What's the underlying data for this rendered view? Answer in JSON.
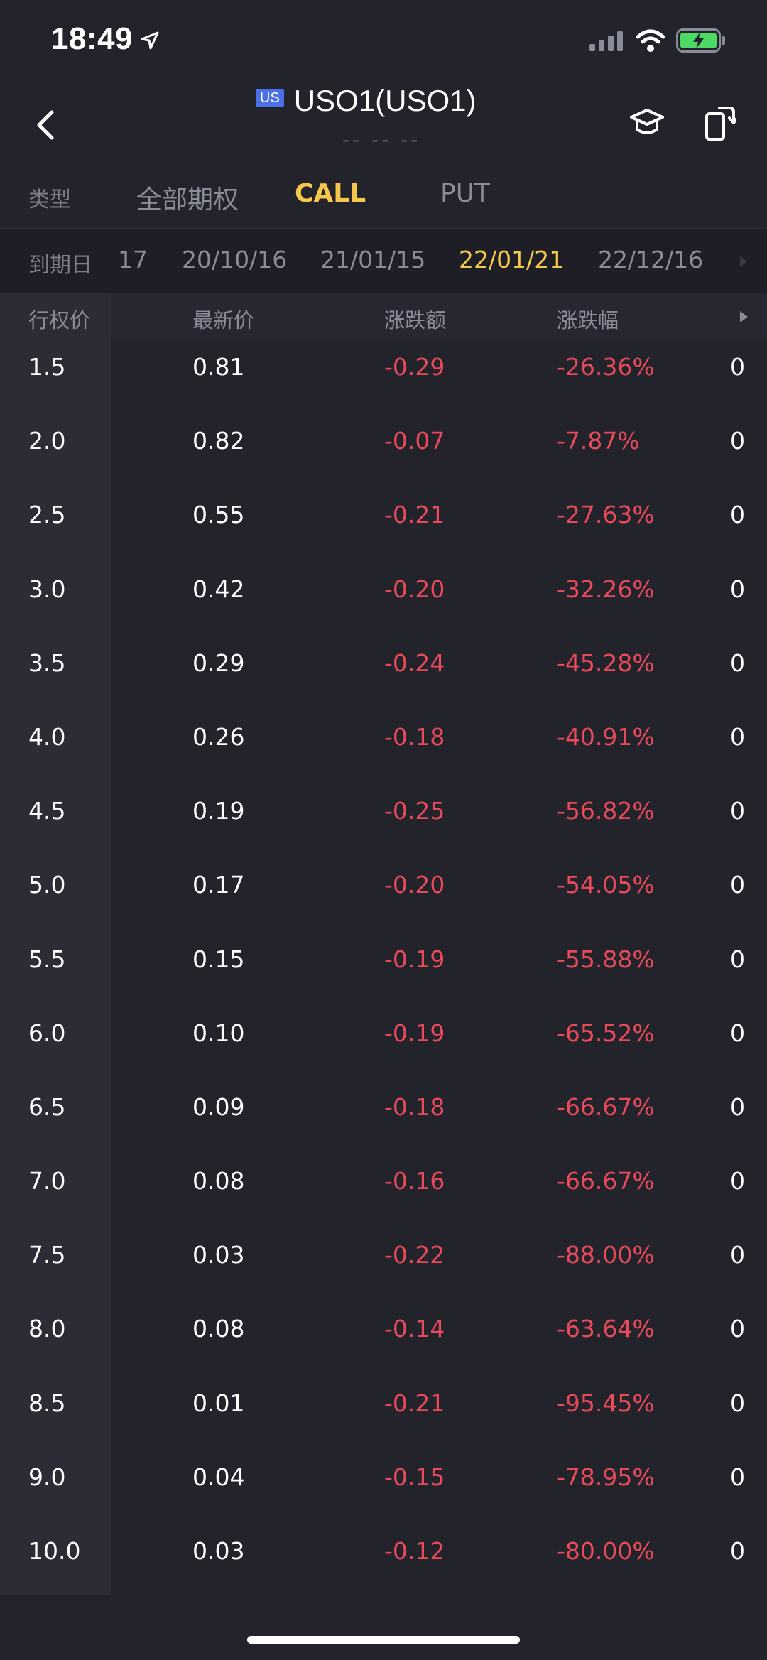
{
  "status_bar": {
    "time": "18:49"
  },
  "header": {
    "market_badge": "US",
    "title": "USO1(USO1)",
    "subtitle": "-- -- --"
  },
  "type_filter": {
    "label": "类型",
    "tabs": [
      {
        "label": "全部期权",
        "active": false
      },
      {
        "label": "CALL",
        "active": true
      },
      {
        "label": "PUT",
        "active": false
      }
    ]
  },
  "expiry": {
    "label": "到期日",
    "dates": [
      {
        "label": "17",
        "active": false
      },
      {
        "label": "20/10/16",
        "active": false
      },
      {
        "label": "21/01/15",
        "active": false
      },
      {
        "label": "22/01/21",
        "active": true
      },
      {
        "label": "22/12/16",
        "active": false
      }
    ]
  },
  "table": {
    "columns": [
      "行权价",
      "最新价",
      "涨跌额",
      "涨跌幅"
    ],
    "rows": [
      {
        "strike": "1.5",
        "last": "0.81",
        "change": "-0.29",
        "pct": "-26.36%",
        "overflow": "0"
      },
      {
        "strike": "2.0",
        "last": "0.82",
        "change": "-0.07",
        "pct": "-7.87%",
        "overflow": "0"
      },
      {
        "strike": "2.5",
        "last": "0.55",
        "change": "-0.21",
        "pct": "-27.63%",
        "overflow": "0"
      },
      {
        "strike": "3.0",
        "last": "0.42",
        "change": "-0.20",
        "pct": "-32.26%",
        "overflow": "0"
      },
      {
        "strike": "3.5",
        "last": "0.29",
        "change": "-0.24",
        "pct": "-45.28%",
        "overflow": "0"
      },
      {
        "strike": "4.0",
        "last": "0.26",
        "change": "-0.18",
        "pct": "-40.91%",
        "overflow": "0"
      },
      {
        "strike": "4.5",
        "last": "0.19",
        "change": "-0.25",
        "pct": "-56.82%",
        "overflow": "0"
      },
      {
        "strike": "5.0",
        "last": "0.17",
        "change": "-0.20",
        "pct": "-54.05%",
        "overflow": "0"
      },
      {
        "strike": "5.5",
        "last": "0.15",
        "change": "-0.19",
        "pct": "-55.88%",
        "overflow": "0"
      },
      {
        "strike": "6.0",
        "last": "0.10",
        "change": "-0.19",
        "pct": "-65.52%",
        "overflow": "0"
      },
      {
        "strike": "6.5",
        "last": "0.09",
        "change": "-0.18",
        "pct": "-66.67%",
        "overflow": "0"
      },
      {
        "strike": "7.0",
        "last": "0.08",
        "change": "-0.16",
        "pct": "-66.67%",
        "overflow": "0"
      },
      {
        "strike": "7.5",
        "last": "0.03",
        "change": "-0.22",
        "pct": "-88.00%",
        "overflow": "0"
      },
      {
        "strike": "8.0",
        "last": "0.08",
        "change": "-0.14",
        "pct": "-63.64%",
        "overflow": "0"
      },
      {
        "strike": "8.5",
        "last": "0.01",
        "change": "-0.21",
        "pct": "-95.45%",
        "overflow": "0"
      },
      {
        "strike": "9.0",
        "last": "0.04",
        "change": "-0.15",
        "pct": "-78.95%",
        "overflow": "0"
      },
      {
        "strike": "10.0",
        "last": "0.03",
        "change": "-0.12",
        "pct": "-80.00%",
        "overflow": "0"
      }
    ]
  },
  "colors": {
    "background": "#22232b",
    "accent": "#f5c84c",
    "negative": "#e84a5a",
    "badge": "#4b6fe8"
  },
  "icons": {
    "back": "chevron-left-icon",
    "learn": "graduation-cap-icon",
    "rotate": "rotate-screen-icon"
  }
}
